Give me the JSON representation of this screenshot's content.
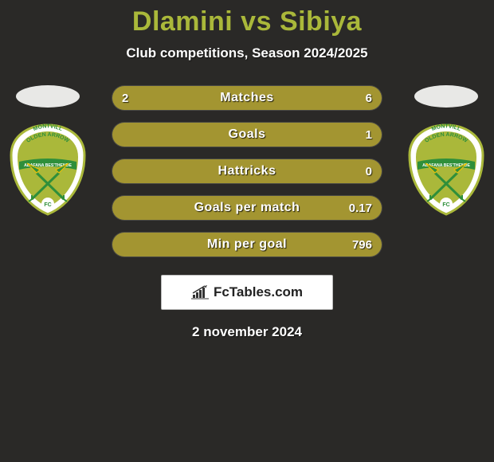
{
  "header": {
    "title_player1": "Dlamini",
    "title_vs": "vs",
    "title_player2": "Sibiya",
    "title_color": "#aab83a",
    "subtitle": "Club competitions, Season 2024/2025"
  },
  "background_color": "#2a2927",
  "bars": {
    "track_color": "#3a3a35",
    "fill_color": "#a39531",
    "text_color": "#ffffff",
    "height": 32,
    "radius": 16,
    "items": [
      {
        "label": "Matches",
        "left": "2",
        "right": "6",
        "left_pct": 25,
        "right_pct": 75
      },
      {
        "label": "Goals",
        "left": "",
        "right": "1",
        "left_pct": 0,
        "right_pct": 100
      },
      {
        "label": "Hattricks",
        "left": "",
        "right": "0",
        "left_pct": 0,
        "right_pct": 100
      },
      {
        "label": "Goals per match",
        "left": "",
        "right": "0.17",
        "left_pct": 0,
        "right_pct": 100
      },
      {
        "label": "Min per goal",
        "left": "",
        "right": "796",
        "left_pct": 0,
        "right_pct": 100
      }
    ]
  },
  "club_badge": {
    "shield_back": "#ffffff",
    "shield_inner": "#aab83a",
    "ribbon_color": "#2f8f3a",
    "ribbon_text": "ABAFANA BES'THENDE",
    "top_text1": "MONTVILL",
    "top_text2": "OLDEN ARROW",
    "fc_text": "FC",
    "arrow_color": "#2f8f3a",
    "arrow_edge": "#f2c200"
  },
  "brand": {
    "text": "FcTables.com",
    "text_color": "#222222",
    "box_bg": "#ffffff",
    "icon_color": "#333333"
  },
  "footer": {
    "date": "2 november 2024"
  }
}
